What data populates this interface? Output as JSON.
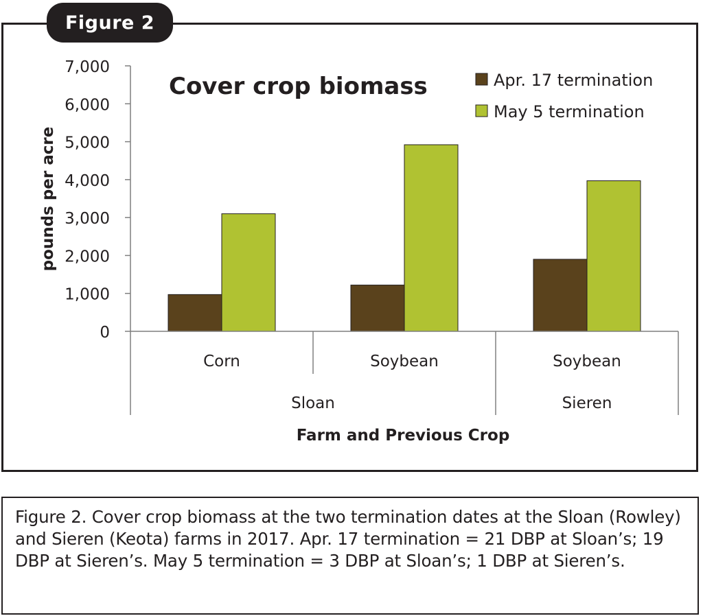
{
  "figure_label": "Figure 2",
  "caption": "Figure 2. Cover crop biomass at the two termination dates at the Sloan (Rowley) and Sieren (Keota) farms in 2017. Apr. 17 termination = 21 DBP at Sloan’s; 19 DBP at Sieren’s. May 5 termination = 3 DBP at Sloan’s; 1 DBP at Sieren’s.",
  "chart_data": {
    "type": "bar",
    "title": "Cover crop biomass",
    "ylabel": "pounds per acre",
    "xlabel": "Farm and Previous Crop",
    "ylim": [
      0,
      7000
    ],
    "yticks": [
      0,
      1000,
      2000,
      3000,
      4000,
      5000,
      6000,
      7000
    ],
    "ytick_labels": [
      "0",
      "1,000",
      "2,000",
      "3,000",
      "4,000",
      "5,000",
      "6,000",
      "7,000"
    ],
    "categories": [
      "Corn",
      "Soybean",
      "Soybean"
    ],
    "groups": [
      {
        "label": "Sloan",
        "span": [
          0,
          1
        ]
      },
      {
        "label": "Sieren",
        "span": [
          2,
          2
        ]
      }
    ],
    "series": [
      {
        "name": "Apr. 17 termination",
        "color": "#5a421c",
        "values": [
          970,
          1220,
          1900
        ]
      },
      {
        "name": "May 5 termination",
        "color": "#b0c232",
        "values": [
          3100,
          4920,
          3970
        ]
      }
    ],
    "legend_position": "top-right",
    "grid": false
  }
}
